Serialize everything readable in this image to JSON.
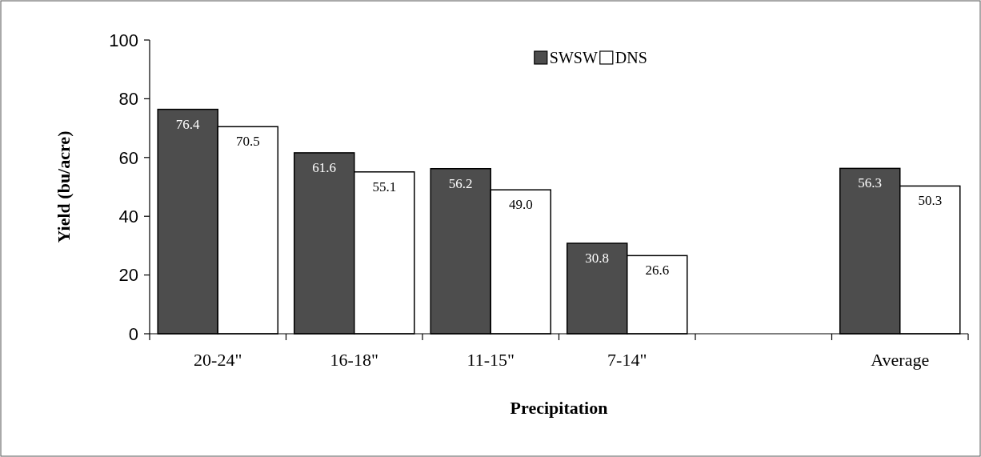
{
  "chart_data": {
    "type": "bar",
    "xlabel": "Precipitation",
    "ylabel": "Yield (bu/acre)",
    "categories": [
      "20-24\"",
      "16-18\"",
      "11-15\"",
      "7-14\"",
      null,
      "Average"
    ],
    "series": [
      {
        "name": "SWSW",
        "color": "#4d4d4d",
        "values": [
          76.4,
          61.6,
          56.2,
          30.8,
          null,
          56.3
        ],
        "value_labels": [
          "76.4",
          "61.6",
          "56.2",
          "30.8",
          null,
          "56.3"
        ]
      },
      {
        "name": "DNS",
        "color": "#ffffff",
        "values": [
          70.5,
          55.1,
          49.0,
          26.6,
          null,
          50.3
        ],
        "value_labels": [
          "70.5",
          "55.1",
          "49.0",
          "26.6",
          null,
          "50.3"
        ]
      }
    ],
    "ylim": [
      0,
      100
    ],
    "yticks": [
      0,
      20,
      40,
      60,
      80,
      100
    ],
    "legend": "top",
    "grid": false
  }
}
